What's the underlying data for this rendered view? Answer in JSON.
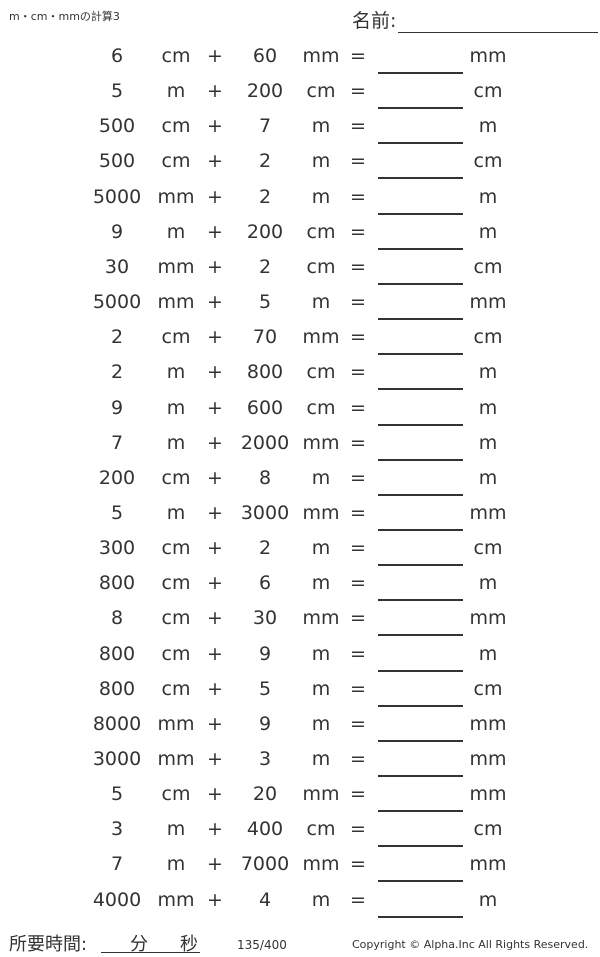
{
  "header": {
    "title": "m・cm・mmの計算3",
    "name_label": "名前:"
  },
  "problems": [
    {
      "a": "6",
      "ua": "cm",
      "op": "+",
      "b": "60",
      "ub": "mm",
      "eq": "=",
      "ans_unit": "mm"
    },
    {
      "a": "5",
      "ua": "m",
      "op": "+",
      "b": "200",
      "ub": "cm",
      "eq": "=",
      "ans_unit": "cm"
    },
    {
      "a": "500",
      "ua": "cm",
      "op": "+",
      "b": "7",
      "ub": "m",
      "eq": "=",
      "ans_unit": "m"
    },
    {
      "a": "500",
      "ua": "cm",
      "op": "+",
      "b": "2",
      "ub": "m",
      "eq": "=",
      "ans_unit": "cm"
    },
    {
      "a": "5000",
      "ua": "mm",
      "op": "+",
      "b": "2",
      "ub": "m",
      "eq": "=",
      "ans_unit": "m"
    },
    {
      "a": "9",
      "ua": "m",
      "op": "+",
      "b": "200",
      "ub": "cm",
      "eq": "=",
      "ans_unit": "m"
    },
    {
      "a": "30",
      "ua": "mm",
      "op": "+",
      "b": "2",
      "ub": "cm",
      "eq": "=",
      "ans_unit": "cm"
    },
    {
      "a": "5000",
      "ua": "mm",
      "op": "+",
      "b": "5",
      "ub": "m",
      "eq": "=",
      "ans_unit": "mm"
    },
    {
      "a": "2",
      "ua": "cm",
      "op": "+",
      "b": "70",
      "ub": "mm",
      "eq": "=",
      "ans_unit": "cm"
    },
    {
      "a": "2",
      "ua": "m",
      "op": "+",
      "b": "800",
      "ub": "cm",
      "eq": "=",
      "ans_unit": "m"
    },
    {
      "a": "9",
      "ua": "m",
      "op": "+",
      "b": "600",
      "ub": "cm",
      "eq": "=",
      "ans_unit": "m"
    },
    {
      "a": "7",
      "ua": "m",
      "op": "+",
      "b": "2000",
      "ub": "mm",
      "eq": "=",
      "ans_unit": "m"
    },
    {
      "a": "200",
      "ua": "cm",
      "op": "+",
      "b": "8",
      "ub": "m",
      "eq": "=",
      "ans_unit": "m"
    },
    {
      "a": "5",
      "ua": "m",
      "op": "+",
      "b": "3000",
      "ub": "mm",
      "eq": "=",
      "ans_unit": "mm"
    },
    {
      "a": "300",
      "ua": "cm",
      "op": "+",
      "b": "2",
      "ub": "m",
      "eq": "=",
      "ans_unit": "cm"
    },
    {
      "a": "800",
      "ua": "cm",
      "op": "+",
      "b": "6",
      "ub": "m",
      "eq": "=",
      "ans_unit": "m"
    },
    {
      "a": "8",
      "ua": "cm",
      "op": "+",
      "b": "30",
      "ub": "mm",
      "eq": "=",
      "ans_unit": "mm"
    },
    {
      "a": "800",
      "ua": "cm",
      "op": "+",
      "b": "9",
      "ub": "m",
      "eq": "=",
      "ans_unit": "m"
    },
    {
      "a": "800",
      "ua": "cm",
      "op": "+",
      "b": "5",
      "ub": "m",
      "eq": "=",
      "ans_unit": "cm"
    },
    {
      "a": "8000",
      "ua": "mm",
      "op": "+",
      "b": "9",
      "ub": "m",
      "eq": "=",
      "ans_unit": "mm"
    },
    {
      "a": "3000",
      "ua": "mm",
      "op": "+",
      "b": "3",
      "ub": "m",
      "eq": "=",
      "ans_unit": "mm"
    },
    {
      "a": "5",
      "ua": "cm",
      "op": "+",
      "b": "20",
      "ub": "mm",
      "eq": "=",
      "ans_unit": "mm"
    },
    {
      "a": "3",
      "ua": "m",
      "op": "+",
      "b": "400",
      "ub": "cm",
      "eq": "=",
      "ans_unit": "cm"
    },
    {
      "a": "7",
      "ua": "m",
      "op": "+",
      "b": "7000",
      "ub": "mm",
      "eq": "=",
      "ans_unit": "mm"
    },
    {
      "a": "4000",
      "ua": "mm",
      "op": "+",
      "b": "4",
      "ub": "m",
      "eq": "=",
      "ans_unit": "m"
    }
  ],
  "footer": {
    "time_label": "所要時間:",
    "minutes": "分",
    "seconds": "秒",
    "page": "135/400",
    "copyright": "Copyright © Alpha.Inc All Rights Reserved."
  }
}
